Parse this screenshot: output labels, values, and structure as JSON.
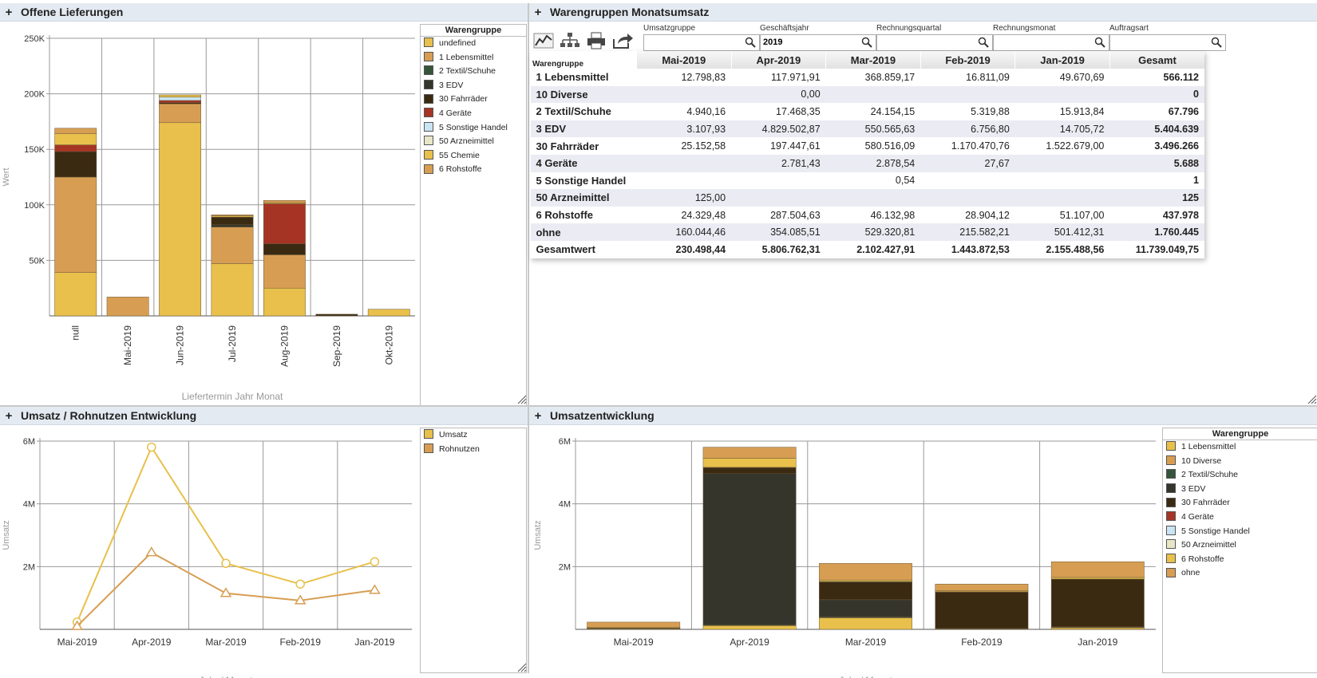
{
  "colors": {
    "undefined": "#e8c04b",
    "lebensmittel": "#d79e53",
    "textil": "#35553a",
    "edv": "#35352c",
    "fahrraeder": "#3a2a12",
    "geraete": "#a63425",
    "sonstige": "#c9e5f3",
    "arznei": "#e9e6c8",
    "chemie": "#e8c04b",
    "rohstoffe": "#d79e53",
    "diverse": "#d79e53",
    "ohne": "#d79e53",
    "umsatz": "#e8c04b",
    "rohnutzen": "#d79e53"
  },
  "panels": {
    "offene": {
      "title": "Offene Lieferungen"
    },
    "warengruppen": {
      "title": "Warengruppen Monatsumsatz"
    },
    "rohnutzen": {
      "title": "Umsatz / Rohnutzen Entwicklung"
    },
    "umsatzentwicklung": {
      "title": "Umsatzentwicklung"
    }
  },
  "toolbar": {
    "icons": [
      "line-chart-icon",
      "hierarchy-icon",
      "print-icon",
      "share-icon"
    ]
  },
  "filters": [
    {
      "label": "Umsatzgruppe",
      "value": ""
    },
    {
      "label": "Geschäftsjahr",
      "value": "2019"
    },
    {
      "label": "Rechnungsquartal",
      "value": ""
    },
    {
      "label": "Rechnungsmonat",
      "value": ""
    },
    {
      "label": "Auftragsart",
      "value": ""
    }
  ],
  "table": {
    "corner": "Warengruppe",
    "columns": [
      "Mai-2019",
      "Apr-2019",
      "Mar-2019",
      "Feb-2019",
      "Jan-2019",
      "Gesamt"
    ],
    "rows": [
      {
        "label": "1 Lebensmittel",
        "cells": [
          "12.798,83",
          "117.971,91",
          "368.859,17",
          "16.811,09",
          "49.670,69",
          "566.112"
        ]
      },
      {
        "label": "10 Diverse",
        "cells": [
          "",
          "0,00",
          "",
          "",
          "",
          "0"
        ]
      },
      {
        "label": "2 Textil/Schuhe",
        "cells": [
          "4.940,16",
          "17.468,35",
          "24.154,15",
          "5.319,88",
          "15.913,84",
          "67.796"
        ]
      },
      {
        "label": "3 EDV",
        "cells": [
          "3.107,93",
          "4.829.502,87",
          "550.565,63",
          "6.756,80",
          "14.705,72",
          "5.404.639"
        ]
      },
      {
        "label": "30 Fahrräder",
        "cells": [
          "25.152,58",
          "197.447,61",
          "580.516,09",
          "1.170.470,76",
          "1.522.679,00",
          "3.496.266"
        ]
      },
      {
        "label": "4 Geräte",
        "cells": [
          "",
          "2.781,43",
          "2.878,54",
          "27,67",
          "",
          "5.688"
        ]
      },
      {
        "label": "5 Sonstige Handel",
        "cells": [
          "",
          "",
          "0,54",
          "",
          "",
          "1"
        ]
      },
      {
        "label": "50 Arzneimittel",
        "cells": [
          "125,00",
          "",
          "",
          "",
          "",
          "125"
        ]
      },
      {
        "label": "6 Rohstoffe",
        "cells": [
          "24.329,48",
          "287.504,63",
          "46.132,98",
          "28.904,12",
          "51.107,00",
          "437.978"
        ]
      },
      {
        "label": "ohne",
        "cells": [
          "160.044,46",
          "354.085,51",
          "529.320,81",
          "215.582,21",
          "501.412,31",
          "1.760.445"
        ]
      }
    ],
    "total": {
      "label": "Gesamtwert",
      "cells": [
        "230.498,44",
        "5.806.762,31",
        "2.102.427,91",
        "1.443.872,53",
        "2.155.488,56",
        "11.739.049,75"
      ]
    }
  },
  "chart_data": [
    {
      "id": "offene",
      "type": "bar",
      "stacked": true,
      "title": "Offene Lieferungen",
      "xlabel": "Liefertermin Jahr Monat",
      "ylabel": "Wert",
      "ylim": [
        0,
        250000
      ],
      "yticks": [
        "50K",
        "100K",
        "150K",
        "200K",
        "250K"
      ],
      "grid": true,
      "legend_title": "Warengruppe",
      "legend_position": "right",
      "categories": [
        "null",
        "Mai-2019",
        "Jun-2019",
        "Jul-2019",
        "Aug-2019",
        "Sep-2019",
        "Okt-2019"
      ],
      "series": [
        {
          "name": "undefined",
          "color_key": "undefined",
          "values": [
            39000,
            0,
            174000,
            47000,
            25000,
            0,
            6000
          ]
        },
        {
          "name": "1 Lebensmittel",
          "color_key": "lebensmittel",
          "values": [
            86000,
            17000,
            17000,
            33000,
            30000,
            0,
            0
          ]
        },
        {
          "name": "2 Textil/Schuhe",
          "color_key": "textil",
          "values": [
            0,
            0,
            0,
            0,
            0,
            0,
            0
          ]
        },
        {
          "name": "3 EDV",
          "color_key": "edv",
          "values": [
            0,
            0,
            0,
            2000,
            0,
            0,
            0
          ]
        },
        {
          "name": "30 Fahrräder",
          "color_key": "fahrraeder",
          "values": [
            23000,
            0,
            1000,
            7000,
            10000,
            1500,
            0
          ]
        },
        {
          "name": "4 Geräte",
          "color_key": "geraete",
          "values": [
            6000,
            0,
            2000,
            0,
            36000,
            0,
            0
          ]
        },
        {
          "name": "5 Sonstige Handel",
          "color_key": "sonstige",
          "values": [
            0,
            0,
            3000,
            0,
            0,
            0,
            0
          ]
        },
        {
          "name": "50 Arzneimittel",
          "color_key": "arznei",
          "values": [
            0,
            0,
            0,
            0,
            0,
            0,
            0
          ]
        },
        {
          "name": "55 Chemie",
          "color_key": "chemie",
          "values": [
            10000,
            0,
            2000,
            1000,
            1000,
            0,
            0
          ]
        },
        {
          "name": "6 Rohstoffe",
          "color_key": "rohstoffe",
          "values": [
            5000,
            0,
            0,
            1000,
            2000,
            0,
            0
          ]
        }
      ]
    },
    {
      "id": "rohnutzen",
      "type": "line",
      "title": "Umsatz / Rohnutzen Entwicklung",
      "xlabel": "Jahr / Monat",
      "ylabel": "Umsatz",
      "ylim": [
        0,
        6000000
      ],
      "yticks": [
        "2M",
        "4M",
        "6M"
      ],
      "grid": true,
      "legend_position": "right",
      "categories": [
        "Mai-2019",
        "Apr-2019",
        "Mar-2019",
        "Feb-2019",
        "Jan-2019"
      ],
      "series": [
        {
          "name": "Umsatz",
          "color_key": "umsatz",
          "marker": "circle",
          "values": [
            230498,
            5806762,
            2102428,
            1443873,
            2155489
          ]
        },
        {
          "name": "Rohnutzen",
          "color_key": "rohnutzen",
          "marker": "triangle",
          "values": [
            100000,
            2450000,
            1150000,
            920000,
            1250000
          ]
        }
      ]
    },
    {
      "id": "umsatzentwicklung",
      "type": "bar",
      "stacked": true,
      "title": "Umsatzentwicklung",
      "xlabel": "Jahr / Monat",
      "ylabel": "Umsatz",
      "ylim": [
        0,
        6000000
      ],
      "yticks": [
        "2M",
        "4M",
        "6M"
      ],
      "grid": true,
      "legend_title": "Warengruppe",
      "legend_position": "right",
      "categories": [
        "Mai-2019",
        "Apr-2019",
        "Mar-2019",
        "Feb-2019",
        "Jan-2019"
      ],
      "series": [
        {
          "name": "1 Lebensmittel",
          "color_key": "undefined",
          "values": [
            12799,
            117972,
            368859,
            16811,
            49671
          ]
        },
        {
          "name": "10 Diverse",
          "color_key": "diverse",
          "values": [
            0,
            0,
            0,
            0,
            0
          ]
        },
        {
          "name": "2 Textil/Schuhe",
          "color_key": "textil",
          "values": [
            4940,
            17468,
            24154,
            5320,
            15914
          ]
        },
        {
          "name": "3 EDV",
          "color_key": "edv",
          "values": [
            3108,
            4829503,
            550566,
            6757,
            14706
          ]
        },
        {
          "name": "30 Fahrräder",
          "color_key": "fahrraeder",
          "values": [
            25153,
            197448,
            580516,
            1170471,
            1522679
          ]
        },
        {
          "name": "4 Geräte",
          "color_key": "geraete",
          "values": [
            0,
            2781,
            2879,
            28,
            0
          ]
        },
        {
          "name": "5 Sonstige Handel",
          "color_key": "sonstige",
          "values": [
            0,
            0,
            1,
            0,
            0
          ]
        },
        {
          "name": "50 Arzneimittel",
          "color_key": "arznei",
          "values": [
            125,
            0,
            0,
            0,
            0
          ]
        },
        {
          "name": "6 Rohstoffe",
          "color_key": "chemie",
          "values": [
            24329,
            287505,
            46133,
            28904,
            51107
          ]
        },
        {
          "name": "ohne",
          "color_key": "ohne",
          "values": [
            160044,
            354086,
            529321,
            215582,
            501412
          ]
        }
      ]
    }
  ]
}
